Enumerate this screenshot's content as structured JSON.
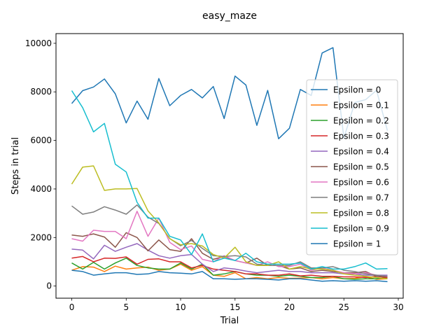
{
  "chart_data": {
    "type": "line",
    "title": "easy_maze",
    "xlabel": "Trial",
    "ylabel": "Steps in trial",
    "xlim": [
      -1.45,
      30.45
    ],
    "ylim": [
      -500,
      10400
    ],
    "xticks": [
      0,
      5,
      10,
      15,
      20,
      25,
      30
    ],
    "yticks": [
      0,
      2000,
      4000,
      6000,
      8000,
      10000
    ],
    "grid": false,
    "legend_position": "right",
    "x": [
      0,
      1,
      2,
      3,
      4,
      5,
      6,
      7,
      8,
      9,
      10,
      11,
      12,
      13,
      14,
      15,
      16,
      17,
      18,
      19,
      20,
      21,
      22,
      23,
      24,
      25,
      26,
      27,
      28,
      29
    ],
    "series": [
      {
        "name": "Epsilon = 0",
        "color": "#1f77b4",
        "values": [
          7520,
          8050,
          8200,
          8530,
          7920,
          6720,
          7620,
          6870,
          8550,
          7430,
          7850,
          8100,
          7750,
          8220,
          6900,
          8650,
          8280,
          6620,
          8060,
          6070,
          6500,
          8100,
          7850,
          9600,
          9820,
          6100,
          7560,
          7680,
          8060,
          6400
        ]
      },
      {
        "name": "Epsilon = 0.1",
        "color": "#ff7f0e",
        "values": [
          650,
          800,
          780,
          600,
          820,
          700,
          750,
          780,
          650,
          700,
          900,
          650,
          800,
          450,
          400,
          550,
          300,
          350,
          300,
          350,
          320,
          330,
          350,
          300,
          350,
          300,
          320,
          380,
          280,
          300
        ]
      },
      {
        "name": "Epsilon = 0.2",
        "color": "#2ca02c",
        "values": [
          950,
          700,
          980,
          700,
          950,
          1150,
          850,
          750,
          700,
          700,
          950,
          700,
          900,
          450,
          500,
          600,
          500,
          450,
          450,
          400,
          450,
          400,
          350,
          350,
          400,
          300,
          280,
          300,
          300,
          350
        ]
      },
      {
        "name": "Epsilon = 0.3",
        "color": "#d62728",
        "values": [
          1150,
          1220,
          1000,
          1150,
          1140,
          1200,
          900,
          1100,
          1120,
          1000,
          1000,
          750,
          850,
          700,
          650,
          600,
          500,
          500,
          450,
          450,
          500,
          420,
          450,
          400,
          400,
          380,
          380,
          350,
          400,
          350
        ]
      },
      {
        "name": "Epsilon = 0.4",
        "color": "#9467bd",
        "values": [
          1520,
          1480,
          1120,
          1680,
          1430,
          1600,
          1750,
          1480,
          1250,
          1150,
          1250,
          1300,
          900,
          600,
          750,
          700,
          620,
          550,
          600,
          650,
          600,
          600,
          550,
          550,
          550,
          500,
          500,
          450,
          450,
          450
        ]
      },
      {
        "name": "Epsilon = 0.5",
        "color": "#8c564b",
        "values": [
          2100,
          2050,
          2150,
          2020,
          1600,
          2200,
          2000,
          1450,
          1900,
          1500,
          1430,
          1950,
          1350,
          1100,
          1220,
          1050,
          950,
          1150,
          850,
          850,
          700,
          750,
          600,
          650,
          600,
          550,
          550,
          600,
          400,
          400
        ]
      },
      {
        "name": "Epsilon = 0.6",
        "color": "#e377c2",
        "values": [
          1950,
          1850,
          2300,
          2250,
          2250,
          1950,
          3080,
          2050,
          2800,
          1800,
          1500,
          1650,
          1100,
          1000,
          1250,
          1050,
          950,
          850,
          1000,
          800,
          800,
          900,
          650,
          750,
          650,
          550,
          500,
          550,
          450,
          400
        ]
      },
      {
        "name": "Epsilon = 0.7",
        "color": "#7f7f7f",
        "values": [
          3300,
          2960,
          3050,
          3270,
          3130,
          2960,
          3340,
          2840,
          2580,
          1960,
          1660,
          1880,
          1550,
          1250,
          1220,
          1250,
          1200,
          900,
          850,
          850,
          850,
          1000,
          750,
          750,
          800,
          650,
          600,
          500,
          450,
          400
        ]
      },
      {
        "name": "Epsilon = 0.8",
        "color": "#bcbd22",
        "values": [
          4200,
          4900,
          4950,
          3940,
          4000,
          4000,
          4020,
          3100,
          2600,
          1950,
          1700,
          1750,
          1650,
          1300,
          1150,
          1600,
          1000,
          850,
          850,
          1000,
          700,
          800,
          700,
          700,
          650,
          500,
          450,
          400,
          350,
          300
        ]
      },
      {
        "name": "Epsilon = 0.9",
        "color": "#17becf",
        "values": [
          8050,
          7350,
          6350,
          6700,
          5020,
          4700,
          3450,
          2800,
          2800,
          2050,
          1900,
          1300,
          2150,
          1000,
          1150,
          1050,
          1350,
          1000,
          900,
          900,
          900,
          950,
          700,
          800,
          700,
          700,
          800,
          950,
          700,
          720
        ]
      },
      {
        "name": "Epsilon = 1",
        "color": "#1f77b4",
        "values": [
          650,
          600,
          450,
          500,
          550,
          550,
          480,
          500,
          600,
          550,
          530,
          500,
          600,
          300,
          300,
          280,
          300,
          300,
          280,
          250,
          300,
          300,
          250,
          200,
          220,
          200,
          220,
          200,
          220,
          180
        ]
      }
    ]
  }
}
